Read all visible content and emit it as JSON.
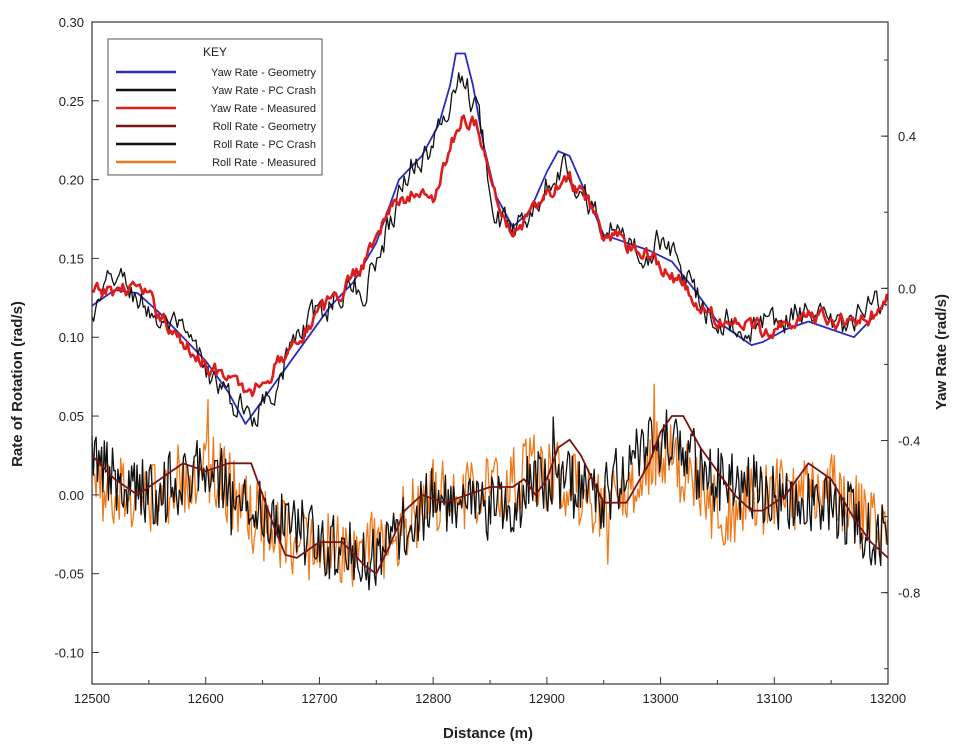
{
  "chart_data": {
    "type": "line",
    "xlabel": "Distance (m)",
    "ylabel": "Rate of Rotation (rad/s)",
    "y2label": "Yaw Rate (rad/s)",
    "xlim": [
      12500,
      13200
    ],
    "ylim": [
      -0.12,
      0.3
    ],
    "y2lim": [
      -1.04,
      0.7
    ],
    "x_ticks": [
      12500,
      12600,
      12700,
      12800,
      12900,
      13000,
      13100,
      13200
    ],
    "y_ticks": [
      -0.1,
      -0.05,
      0.0,
      0.05,
      0.1,
      0.15,
      0.2,
      0.25,
      0.3
    ],
    "y_tick_labels": [
      "-0.10",
      "-0.05",
      "0.00",
      "0.05",
      "0.10",
      "0.15",
      "0.20",
      "0.25",
      "0.30"
    ],
    "y2_ticks": [
      -0.8,
      -0.4,
      0.0,
      0.4
    ],
    "y2_tick_labels": [
      "-0.8",
      "-0.4",
      "0.0",
      "0.4"
    ],
    "grid": false,
    "legend": {
      "title": "KEY",
      "placement": "top-left"
    },
    "series": [
      {
        "name": "Yaw Rate - Geometry",
        "color": "#2c2cbf",
        "noise": 0.0,
        "x": [
          12500,
          12520,
          12540,
          12560,
          12580,
          12600,
          12620,
          12635,
          12650,
          12670,
          12690,
          12710,
          12730,
          12750,
          12770,
          12790,
          12805,
          12815,
          12820,
          12828,
          12835,
          12845,
          12855,
          12870,
          12885,
          12900,
          12910,
          12920,
          12935,
          12950,
          12970,
          12990,
          13010,
          13030,
          13050,
          13070,
          13080,
          13090,
          13110,
          13130,
          13150,
          13170,
          13190,
          13200
        ],
        "y": [
          0.12,
          0.13,
          0.128,
          0.115,
          0.1,
          0.085,
          0.065,
          0.045,
          0.06,
          0.08,
          0.1,
          0.12,
          0.135,
          0.16,
          0.2,
          0.215,
          0.235,
          0.26,
          0.28,
          0.28,
          0.26,
          0.22,
          0.19,
          0.17,
          0.18,
          0.205,
          0.218,
          0.215,
          0.19,
          0.165,
          0.16,
          0.155,
          0.148,
          0.13,
          0.11,
          0.1,
          0.095,
          0.097,
          0.105,
          0.11,
          0.105,
          0.1,
          0.115,
          0.125
        ]
      },
      {
        "name": "Yaw Rate - PC Crash",
        "color": "#111111",
        "noise": 0.009,
        "x": [
          12500,
          12520,
          12540,
          12560,
          12580,
          12600,
          12620,
          12640,
          12660,
          12680,
          12700,
          12720,
          12740,
          12760,
          12780,
          12800,
          12815,
          12825,
          12840,
          12850,
          12860,
          12875,
          12890,
          12905,
          12915,
          12930,
          12950,
          12970,
          12990,
          13005,
          13020,
          13040,
          13060,
          13080,
          13100,
          13120,
          13140,
          13160,
          13180,
          13200
        ],
        "y": [
          0.11,
          0.14,
          0.125,
          0.11,
          0.1,
          0.08,
          0.06,
          0.05,
          0.07,
          0.1,
          0.115,
          0.13,
          0.13,
          0.17,
          0.21,
          0.22,
          0.25,
          0.27,
          0.24,
          0.2,
          0.17,
          0.17,
          0.19,
          0.205,
          0.21,
          0.195,
          0.17,
          0.16,
          0.152,
          0.165,
          0.14,
          0.12,
          0.11,
          0.105,
          0.11,
          0.115,
          0.11,
          0.105,
          0.115,
          0.13
        ]
      },
      {
        "name": "Yaw Rate - Measured",
        "color": "#dd1c1c",
        "noise": 0.005,
        "x": [
          12500,
          12520,
          12540,
          12560,
          12580,
          12600,
          12620,
          12640,
          12660,
          12680,
          12700,
          12720,
          12740,
          12760,
          12780,
          12800,
          12815,
          12825,
          12840,
          12850,
          12865,
          12880,
          12900,
          12920,
          12935,
          12950,
          12970,
          12990,
          13010,
          13030,
          13050,
          13070,
          13090,
          13110,
          13130,
          13150,
          13170,
          13190,
          13200
        ],
        "y": [
          0.127,
          0.13,
          0.132,
          0.115,
          0.095,
          0.085,
          0.072,
          0.065,
          0.08,
          0.1,
          0.115,
          0.13,
          0.15,
          0.18,
          0.19,
          0.19,
          0.22,
          0.24,
          0.235,
          0.2,
          0.168,
          0.172,
          0.19,
          0.2,
          0.185,
          0.165,
          0.16,
          0.152,
          0.14,
          0.123,
          0.11,
          0.11,
          0.105,
          0.11,
          0.113,
          0.112,
          0.11,
          0.115,
          0.125
        ]
      },
      {
        "name": "Roll Rate - Geometry",
        "color": "#7a1414",
        "noise": 0.0,
        "x": [
          12500,
          12520,
          12540,
          12560,
          12580,
          12600,
          12620,
          12640,
          12650,
          12660,
          12670,
          12680,
          12700,
          12720,
          12740,
          12750,
          12760,
          12775,
          12790,
          12810,
          12830,
          12850,
          12870,
          12880,
          12890,
          12900,
          12910,
          12920,
          12930,
          12940,
          12950,
          12970,
          12990,
          13000,
          13010,
          13020,
          13035,
          13050,
          13065,
          13080,
          13090,
          13110,
          13130,
          13150,
          13170,
          13185,
          13200
        ],
        "y": [
          0.025,
          0.01,
          0.0,
          0.01,
          0.02,
          0.015,
          0.02,
          0.02,
          0.0,
          -0.02,
          -0.038,
          -0.04,
          -0.03,
          -0.03,
          -0.045,
          -0.05,
          -0.035,
          -0.01,
          0.0,
          -0.005,
          0.0,
          0.005,
          0.005,
          0.01,
          0.0,
          0.01,
          0.03,
          0.035,
          0.025,
          0.01,
          -0.005,
          -0.005,
          0.02,
          0.04,
          0.05,
          0.05,
          0.03,
          0.015,
          0.0,
          -0.01,
          -0.01,
          0.0,
          0.02,
          0.01,
          -0.015,
          -0.03,
          -0.04
        ]
      },
      {
        "name": "Roll Rate - PC Crash",
        "color": "#111111",
        "noise": 0.022,
        "x": [
          12500,
          12550,
          12600,
          12650,
          12700,
          12750,
          12800,
          12850,
          12900,
          12950,
          13000,
          13050,
          13100,
          13150,
          13200
        ],
        "y": [
          0.02,
          0.0,
          0.015,
          -0.01,
          -0.03,
          -0.04,
          0.0,
          -0.01,
          0.01,
          0.0,
          0.035,
          0.01,
          0.0,
          -0.005,
          -0.03
        ]
      },
      {
        "name": "Roll Rate - Measured",
        "color": "#f07a1a",
        "noise": 0.024,
        "x": [
          12500,
          12550,
          12600,
          12650,
          12700,
          12750,
          12800,
          12850,
          12900,
          12950,
          13000,
          13050,
          13100,
          13150,
          13200
        ],
        "y": [
          0.01,
          -0.005,
          0.02,
          -0.02,
          -0.035,
          -0.035,
          0.0,
          0.0,
          0.02,
          -0.01,
          0.03,
          -0.01,
          0.0,
          0.005,
          -0.03
        ]
      }
    ]
  }
}
